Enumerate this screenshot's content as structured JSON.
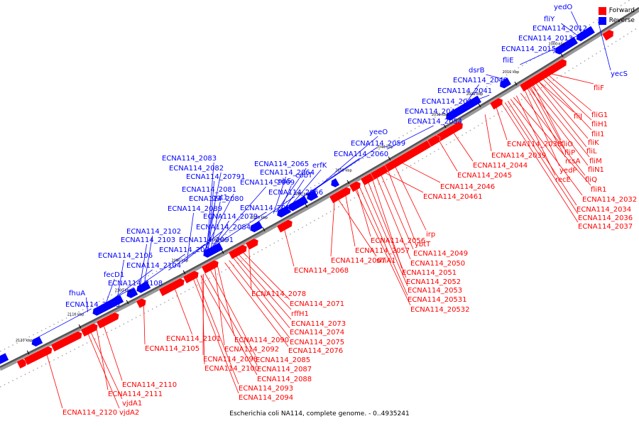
{
  "legend": {
    "forward_label": "Forward",
    "reverse_label": "Reverse",
    "forward_color": "#ff0000",
    "reverse_color": "#0000ff"
  },
  "caption": "Escherichia coli NA114, complete genome. - 0..4935241",
  "ticks": [
    "2000 kbp",
    "2010 kbp",
    "2020 kbp",
    "2030 kbp",
    "2040 kbp",
    "2050 kbp",
    "2060 kbp",
    "2070 kbp",
    "2080 kbp",
    "2090 kbp",
    "2100 kbp",
    "2110 kbp",
    "2120 kbp"
  ],
  "reverse_labels": [
    "yedO",
    "fliY",
    "ECNA114_2012",
    "ECNA114_2013",
    "ECNA114_2015",
    "fliE",
    "dsrB",
    "ECNA114_2040",
    "ECNA114_2041",
    "ECNA114_2042",
    "ECNA114_2043",
    "ECNA114_2054",
    "yeeO",
    "ECNA114_2059",
    "ECNA114_2060",
    "erfK",
    "cobT",
    "cobS",
    "ECNA114_2065",
    "ECNA114_2064",
    "ECNA114_2066",
    "ECNA114_2070",
    "ECNA114_2069",
    "ggt1",
    "ECNA114_20791",
    "ECNA114_2083",
    "ECNA114_2082",
    "ECNA114_2081",
    "ECNA114_2080",
    "ECNA114_2089",
    "ECNA114_2079",
    "ECNA114_2084",
    "ECNA114_2091",
    "ECNA114_2102",
    "ECNA114_2103",
    "ECNA114_2096",
    "ECNA114_2106",
    "ECNA114_2104",
    "fecD1",
    "ECNA114_2108",
    "fhuA",
    "ECNA114_2125",
    "yecS"
  ],
  "forward_labels": [
    "fliF",
    "fliG1",
    "fliH1",
    "fliI1",
    "fliJ",
    "fliK",
    "fliL",
    "fliO",
    "fliM",
    "fliP",
    "fliN1",
    "rcsA",
    "yedP",
    "fliQ",
    "recE",
    "fliR1",
    "ECNA114_2032",
    "ECNA114_2034",
    "ECNA114_2036",
    "ECNA114_2037",
    "ECNA114_2038",
    "ECNA114_2039",
    "ECNA114_2044",
    "ECNA114_2045",
    "ECNA114_2046",
    "ECNA114_20461",
    "irp",
    "ybtT",
    "ECNA114_2049",
    "ECNA114_2050",
    "ECNA114_2051",
    "ECNA114_2052",
    "ECNA114_2053",
    "ECNA114_20531",
    "ECNA114_20532",
    "ECNA114_2056",
    "ECNA114_2057",
    "shiA1",
    "ECNA114_2067",
    "ECNA114_2068",
    "ECNA114_2078",
    "ECNA114_2071",
    "rffH1",
    "ECNA114_2073",
    "ECNA114_2074",
    "ECNA114_2075",
    "ECNA114_2076",
    "ECNA114_2085",
    "ECNA114_2087",
    "ECNA114_2088",
    "ECNA114_2090",
    "ECNA114_2092",
    "ECNA114_2098",
    "ECNA114_2100",
    "ECNA114_2101",
    "ECNA114_2105",
    "ECNA114_2093",
    "ECNA114_2094",
    "ECNA114_2110",
    "ECNA114_2111",
    "vjdA1",
    "ECNA114_2120",
    "vjdA2"
  ]
}
